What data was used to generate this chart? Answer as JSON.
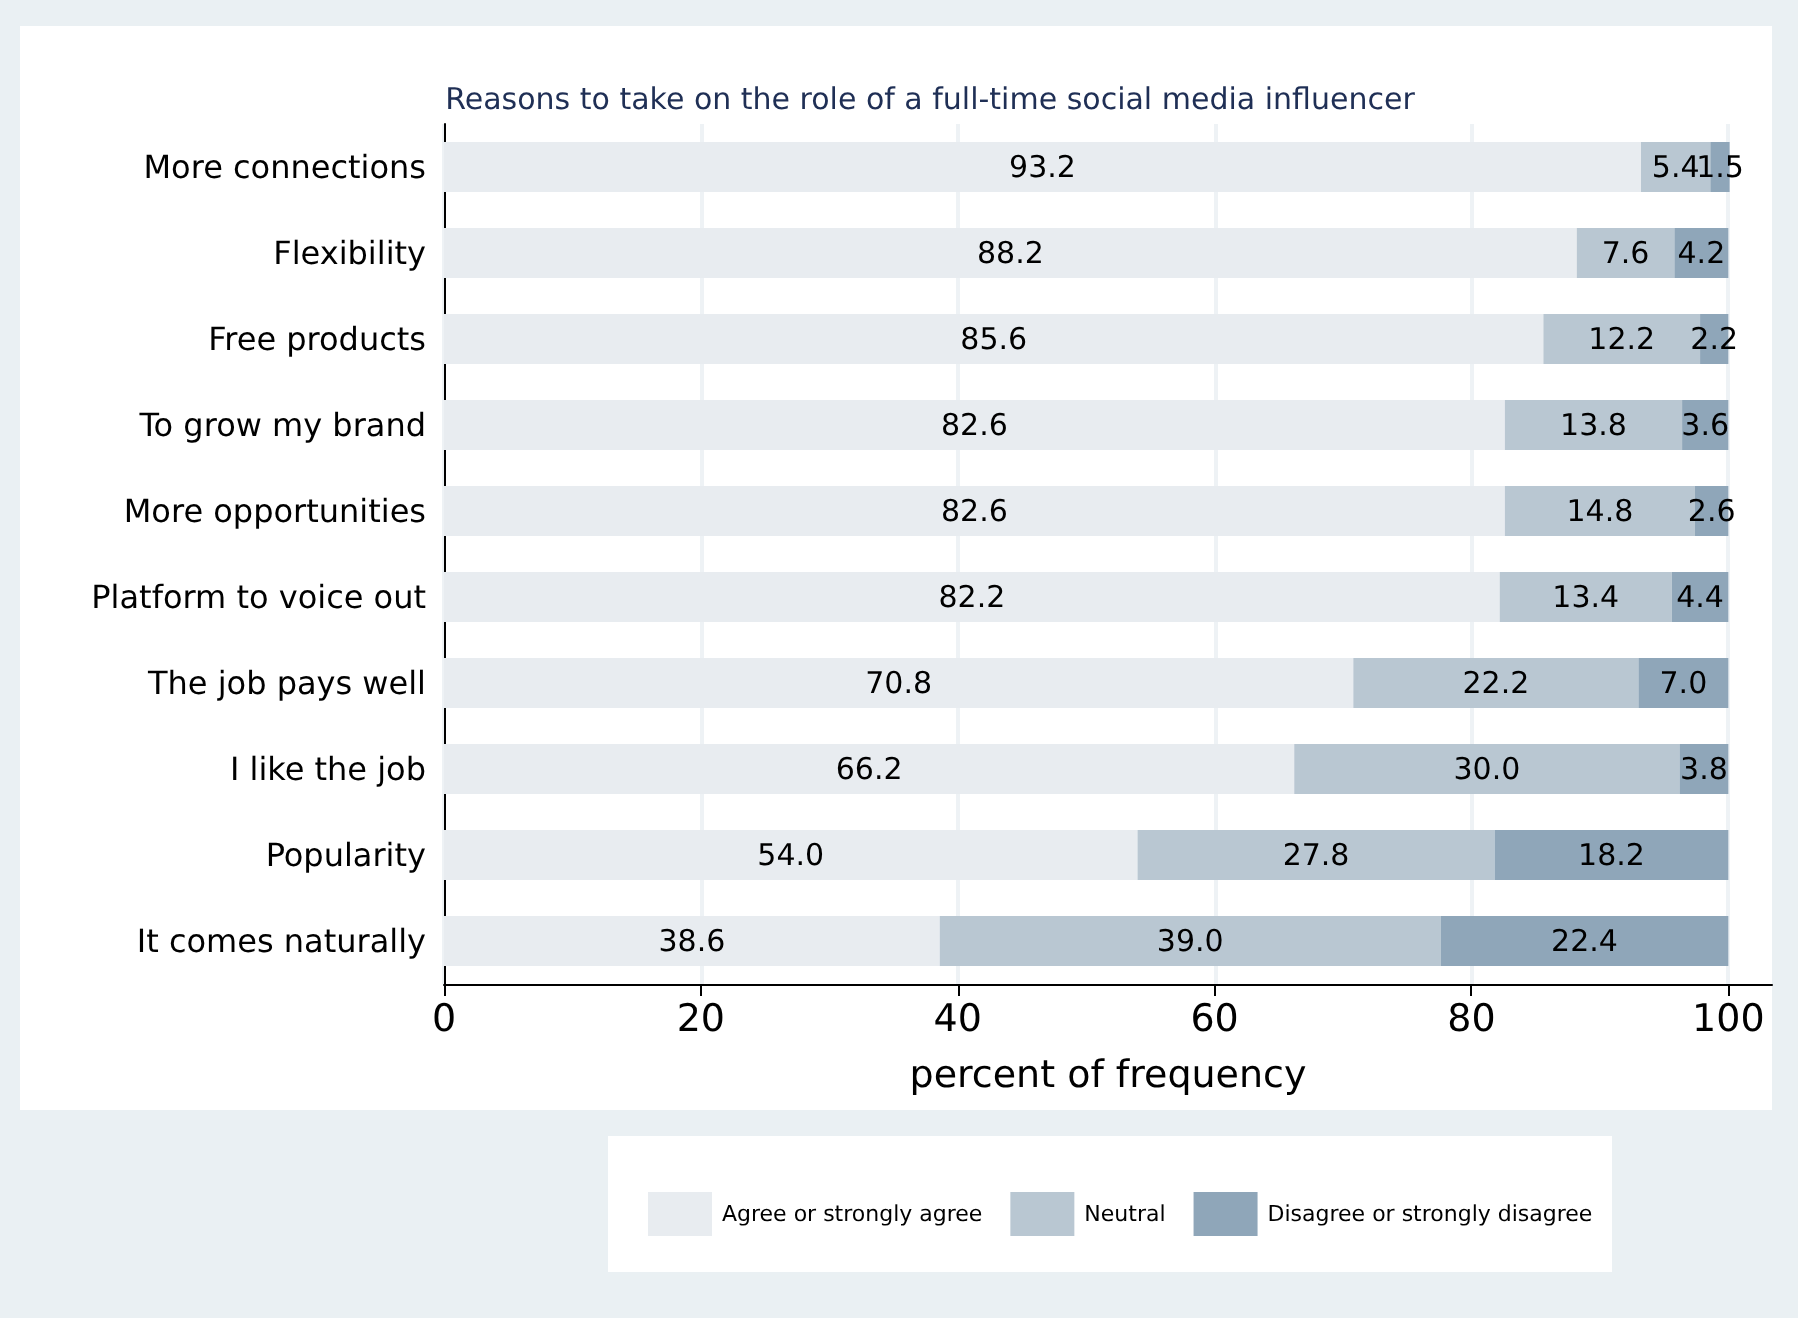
{
  "chart_data": {
    "type": "bar",
    "orientation": "horizontal",
    "stacked": true,
    "title": "Reasons to take on the role of a full-time social media influencer",
    "xlabel": "percent of frequency",
    "categories": [
      "More connections",
      "Flexibility",
      "Free products",
      "To grow my brand",
      "More opportunities",
      "Platform to voice out",
      "The job pays well",
      "I like the job",
      "Popularity",
      "It comes naturally"
    ],
    "series": [
      {
        "name": "Agree or strongly agree",
        "color": "#e8ecf0",
        "values": [
          93.2,
          88.2,
          85.6,
          82.6,
          82.6,
          82.2,
          70.8,
          66.2,
          54.0,
          38.6
        ],
        "value_labels": [
          "93.2",
          "88.2",
          "85.6",
          "82.6",
          "82.6",
          "82.2",
          "70.8",
          "66.2",
          "54.0",
          "38.6"
        ]
      },
      {
        "name": "Neutral",
        "color": "#b9c7d2",
        "values": [
          5.4,
          7.6,
          12.2,
          13.8,
          14.8,
          13.4,
          22.2,
          30.0,
          27.8,
          39.0
        ],
        "value_labels": [
          "5.4",
          "7.6",
          "12.2",
          "13.8",
          "14.8",
          "13.4",
          "22.2",
          "30.0",
          "27.8",
          "39.0"
        ]
      },
      {
        "name": "Disagree or strongly disagree",
        "color": "#8fa6b9",
        "values": [
          1.5,
          4.2,
          2.2,
          3.6,
          2.6,
          4.4,
          7.0,
          3.8,
          18.2,
          22.4
        ],
        "value_labels": [
          "1.5",
          "4.2",
          "2.2",
          "3.6",
          "2.6",
          "4.4",
          "7.0",
          "3.8",
          "18.2",
          "22.4"
        ]
      }
    ],
    "xlim": [
      0,
      103.4
    ],
    "xticks": [
      0,
      20,
      40,
      60,
      80,
      100
    ],
    "grid": "x",
    "legend": "bottom"
  }
}
